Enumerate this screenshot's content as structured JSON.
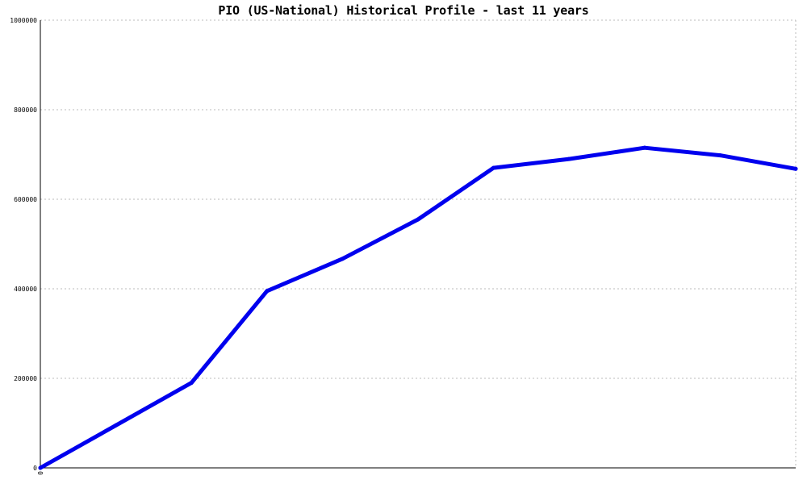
{
  "chart_data": {
    "type": "line",
    "title": "PIO (US-National) Historical Profile - last 11 years",
    "xlabel": "",
    "ylabel": "",
    "x_tick_labels": [
      "0"
    ],
    "ylim": [
      0,
      1000000
    ],
    "y_ticks": [
      0,
      200000,
      400000,
      600000,
      800000,
      1000000
    ],
    "y_tick_labels": [
      "0",
      "200000",
      "400000",
      "600000",
      "800000",
      "1000000"
    ],
    "grid": true,
    "legend": "none",
    "series": [
      {
        "color": "#0000ee",
        "x": [
          0,
          1,
          2,
          3,
          4,
          5,
          6,
          7,
          8,
          9,
          10
        ],
        "values": [
          0,
          95000,
          190000,
          395000,
          467000,
          555000,
          670000,
          690000,
          715000,
          698000,
          668000
        ]
      }
    ]
  }
}
